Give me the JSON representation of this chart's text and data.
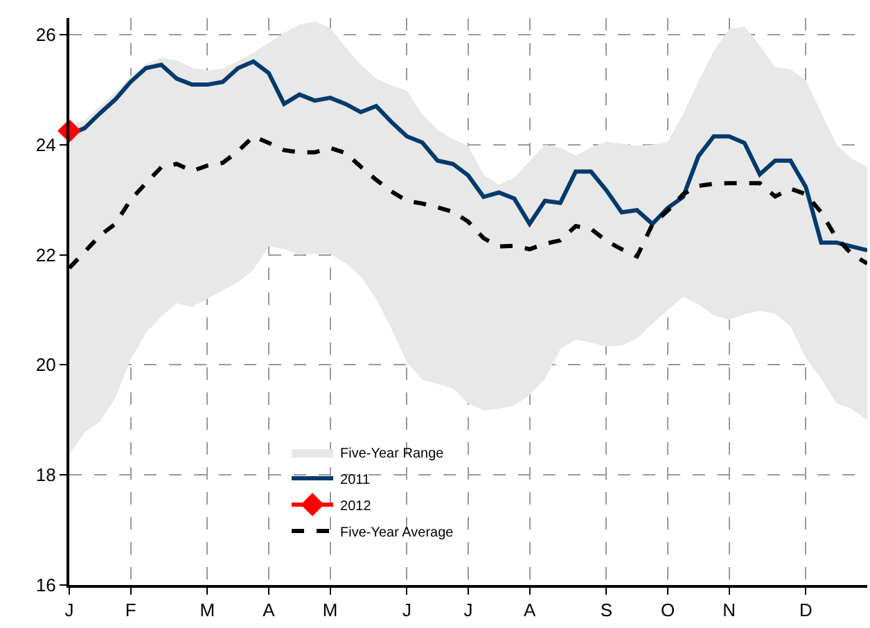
{
  "chart_data": {
    "type": "line",
    "categories": [
      "J",
      null,
      null,
      null,
      "F",
      null,
      null,
      null,
      null,
      "M",
      null,
      null,
      null,
      "A",
      null,
      null,
      null,
      "M",
      null,
      null,
      null,
      null,
      "J",
      null,
      null,
      null,
      "J",
      null,
      null,
      null,
      "A",
      null,
      null,
      null,
      null,
      "S",
      null,
      null,
      null,
      "O",
      null,
      null,
      null,
      "N",
      null,
      null,
      null,
      null,
      "D",
      null,
      null,
      null,
      null
    ],
    "ylim": [
      16,
      26.3
    ],
    "yticks": [
      16,
      18,
      20,
      22,
      24,
      26
    ],
    "grid": true,
    "legend": "bottom",
    "series": [
      {
        "name": "Five-Year Range",
        "color": "#e8e8e8",
        "values": [
          null,
          null,
          null,
          null,
          null,
          null,
          null,
          null,
          null,
          null,
          null,
          null,
          null,
          null,
          null,
          null,
          null,
          null,
          null,
          null,
          null,
          null,
          null,
          null,
          null,
          null,
          null,
          null,
          null,
          null,
          null,
          null,
          null,
          null,
          null,
          null,
          null,
          null,
          null,
          null,
          null,
          null,
          null,
          null,
          null,
          null,
          null,
          null,
          null,
          null,
          null,
          null,
          null
        ],
        "upper": [
          24.35,
          24.44,
          24.7,
          24.95,
          25.25,
          25.47,
          25.58,
          25.53,
          25.4,
          25.35,
          25.38,
          25.52,
          25.67,
          25.85,
          26.03,
          26.18,
          26.24,
          26.12,
          25.77,
          25.45,
          25.2,
          25.08,
          24.98,
          24.55,
          24.27,
          24.1,
          23.98,
          23.45,
          23.27,
          23.4,
          23.7,
          24.0,
          23.95,
          23.8,
          23.95,
          24.06,
          24.02,
          23.98,
          24.0,
          24.05,
          24.55,
          25.15,
          25.7,
          26.1,
          26.15,
          25.8,
          25.41,
          25.37,
          25.17,
          24.58,
          24.0,
          23.74,
          23.6
        ],
        "lower": [
          18.37,
          18.77,
          18.97,
          19.4,
          20.1,
          20.58,
          20.88,
          21.12,
          21.05,
          21.2,
          21.35,
          21.5,
          21.73,
          22.15,
          22.1,
          22.0,
          22.02,
          22.02,
          21.85,
          21.6,
          21.2,
          20.65,
          20.05,
          19.73,
          19.65,
          19.57,
          19.3,
          19.17,
          19.2,
          19.26,
          19.45,
          19.75,
          20.28,
          20.46,
          20.4,
          20.33,
          20.35,
          20.48,
          20.75,
          21.0,
          21.23,
          21.1,
          20.9,
          20.82,
          20.92,
          20.98,
          20.93,
          20.7,
          20.12,
          19.75,
          19.3,
          19.2,
          18.99
        ]
      },
      {
        "name": "2011",
        "color": "#003a6c",
        "line_style": "solid",
        "values": [
          24.18,
          24.3,
          24.57,
          24.82,
          25.14,
          25.39,
          25.45,
          25.2,
          25.09,
          25.09,
          25.14,
          25.39,
          25.51,
          25.3,
          24.74,
          24.91,
          24.8,
          24.85,
          24.74,
          24.59,
          24.7,
          24.41,
          24.15,
          24.04,
          23.71,
          23.65,
          23.44,
          23.05,
          23.13,
          23.02,
          22.56,
          22.98,
          22.94,
          23.51,
          23.51,
          23.17,
          22.77,
          22.81,
          22.56,
          22.85,
          23.05,
          23.79,
          24.15,
          24.15,
          24.03,
          23.46,
          23.71,
          23.71,
          23.23,
          22.22,
          22.22,
          22.15,
          22.08
        ]
      },
      {
        "name": "2012",
        "color": "#ff0000",
        "line_style": "solid",
        "marker": "diamond",
        "values": [
          24.25,
          null,
          null,
          null,
          null,
          null,
          null,
          null,
          null,
          null,
          null,
          null,
          null,
          null,
          null,
          null,
          null,
          null,
          null,
          null,
          null,
          null,
          null,
          null,
          null,
          null,
          null,
          null,
          null,
          null,
          null,
          null,
          null,
          null,
          null,
          null,
          null,
          null,
          null,
          null,
          null,
          null,
          null,
          null,
          null,
          null,
          null,
          null,
          null,
          null,
          null,
          null,
          null
        ]
      },
      {
        "name": "Five-Year Average",
        "color": "#000000",
        "line_style": "dashed",
        "values": [
          21.76,
          22.05,
          22.35,
          22.56,
          23.0,
          23.3,
          23.59,
          23.65,
          23.52,
          23.62,
          23.67,
          23.88,
          24.15,
          24.03,
          23.9,
          23.86,
          23.86,
          23.94,
          23.85,
          23.6,
          23.36,
          23.15,
          22.98,
          22.93,
          22.86,
          22.78,
          22.6,
          22.3,
          22.15,
          22.16,
          22.1,
          22.2,
          22.26,
          22.52,
          22.47,
          22.25,
          22.1,
          21.97,
          22.55,
          22.8,
          23.1,
          23.25,
          23.29,
          23.3,
          23.3,
          23.3,
          23.06,
          23.2,
          23.1,
          22.77,
          22.3,
          22.01,
          21.84
        ]
      }
    ]
  }
}
